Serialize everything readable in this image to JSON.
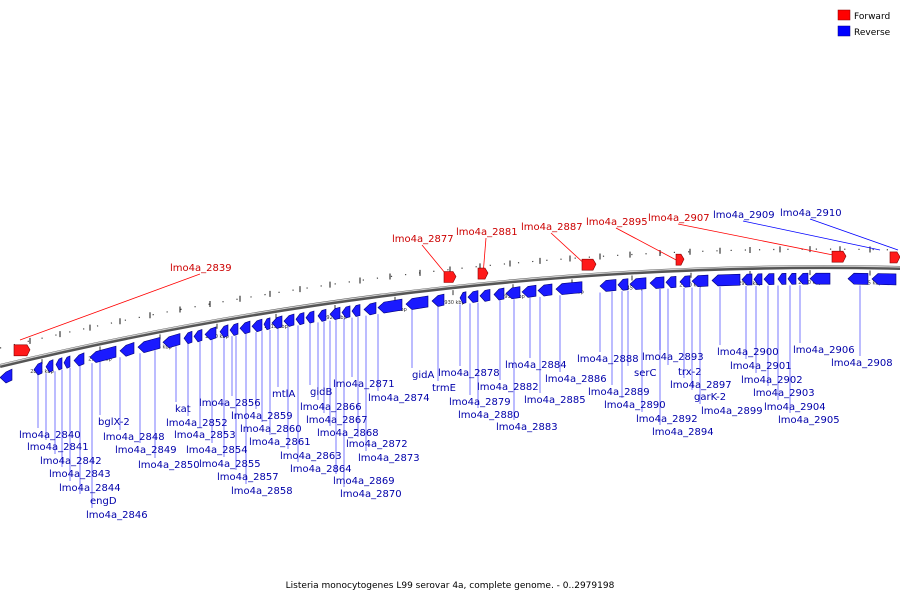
{
  "legend": {
    "forward": {
      "label": "Forward",
      "color": "#ff0000"
    },
    "reverse": {
      "label": "Reverse",
      "color": "#0000ff"
    }
  },
  "caption": "Listeria monocytogenes L99 serovar 4a, complete genome. - 0..2979198",
  "ticks": [
    "2895 kbp",
    "2900 kbp",
    "2905 kbp",
    "2910 kbp",
    "2915 kbp",
    "2920 kbp",
    "2925 kbp",
    "2930 kbp",
    "2935 kbp",
    "2940 kbp",
    "2945 kbp",
    "2950 kbp",
    "2955 kbp",
    "2960 kbp",
    "2965 kbp"
  ],
  "forward_genes": [
    "lmo4a_2839",
    "lmo4a_2877",
    "lmo4a_2881",
    "lmo4a_2887",
    "lmo4a_2895",
    "lmo4a_2907",
    "lmo4a_2909",
    "lmo4a_2910"
  ],
  "reverse_genes": [
    "lmo4a_2840",
    "lmo4a_2841",
    "lmo4a_2842",
    "lmo4a_2843",
    "lmo4a_2844",
    "engD",
    "lmo4a_2846",
    "bglX-2",
    "lmo4a_2848",
    "lmo4a_2849",
    "lmo4a_2850",
    "kat",
    "lmo4a_2852",
    "lmo4a_2853",
    "lmo4a_2854",
    "lmo4a_2855",
    "lmo4a_2856",
    "lmo4a_2857",
    "lmo4a_2858",
    "lmo4a_2859",
    "lmo4a_2860",
    "lmo4a_2861",
    "mtlA",
    "lmo4a_2863",
    "lmo4a_2864",
    "gidB",
    "lmo4a_2866",
    "lmo4a_2867",
    "lmo4a_2868",
    "lmo4a_2869",
    "lmo4a_2870",
    "lmo4a_2871",
    "lmo4a_2872",
    "lmo4a_2873",
    "lmo4a_2874",
    "gidA",
    "trmE",
    "lmo4a_2878",
    "lmo4a_2879",
    "lmo4a_2880",
    "lmo4a_2882",
    "lmo4a_2883",
    "lmo4a_2884",
    "lmo4a_2885",
    "lmo4a_2886",
    "lmo4a_2888",
    "lmo4a_2889",
    "serC",
    "lmo4a_2890",
    "lmo4a_2892",
    "lmo4a_2893",
    "trx-2",
    "lmo4a_2894",
    "lmo4a_2897",
    "garK-2",
    "lmo4a_2899",
    "lmo4a_2900",
    "lmo4a_2901",
    "lmo4a_2902",
    "lmo4a_2903",
    "lmo4a_2904",
    "lmo4a_2905",
    "lmo4a_2906",
    "lmo4a_2908"
  ]
}
